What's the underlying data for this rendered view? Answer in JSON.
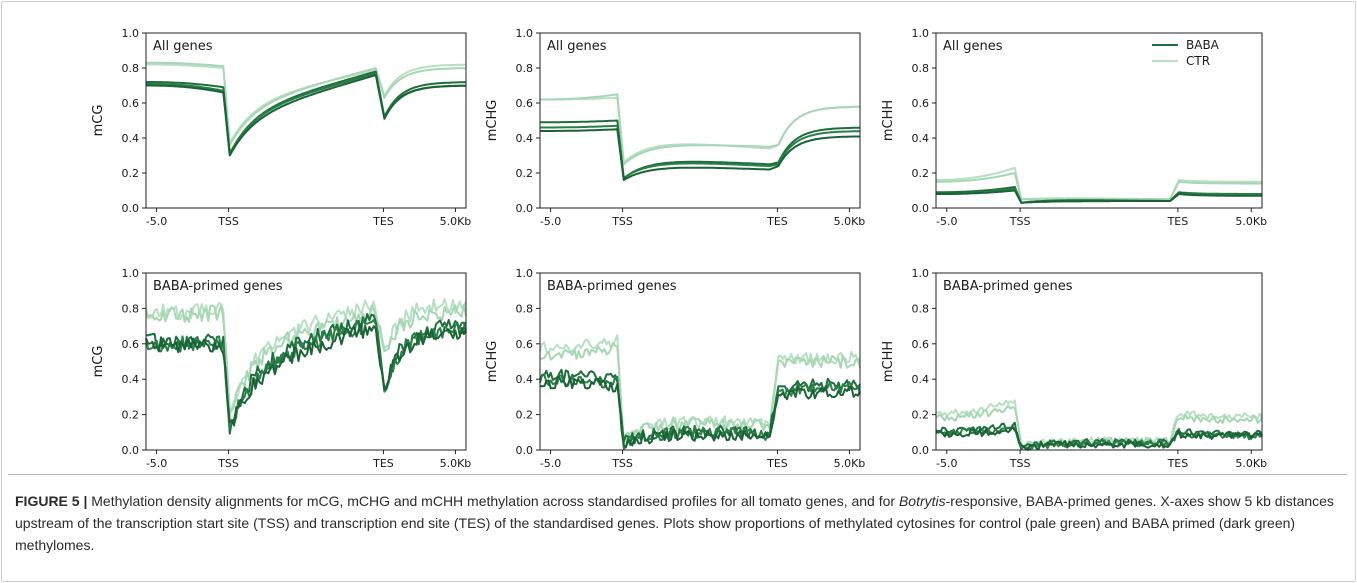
{
  "chart_data": [
    {
      "type": "line",
      "title": "All genes",
      "ylabel": "mCG",
      "ylim": [
        0,
        1.0
      ],
      "yticks": [
        "0.0",
        "0.2",
        "0.4",
        "0.6",
        "0.8",
        "1.0"
      ],
      "xticks": [
        "-5.0",
        "TSS",
        "TES",
        "5.0Kb"
      ],
      "legend": null,
      "noise": 0,
      "x": [
        "-5.0",
        "TSS",
        "TES",
        "5.0Kb"
      ],
      "series": [
        {
          "group": "CTR",
          "start": 0.82,
          "tss": 0.8,
          "dip": 0.37,
          "mid_lo": 0.6,
          "mid_hi": 0.79,
          "tes": 0.73,
          "tes_dip": 0.64,
          "end": 0.82
        },
        {
          "group": "CTR",
          "start": 0.83,
          "tss": 0.81,
          "dip": 0.36,
          "mid_lo": 0.58,
          "mid_hi": 0.8,
          "tes": 0.72,
          "tes_dip": 0.63,
          "end": 0.8
        },
        {
          "group": "BABA",
          "start": 0.72,
          "tss": 0.69,
          "dip": 0.31,
          "mid_lo": 0.55,
          "mid_hi": 0.78,
          "tes": 0.67,
          "tes_dip": 0.52,
          "end": 0.72
        },
        {
          "group": "BABA",
          "start": 0.71,
          "tss": 0.67,
          "dip": 0.31,
          "mid_lo": 0.54,
          "mid_hi": 0.77,
          "tes": 0.66,
          "tes_dip": 0.52,
          "end": 0.7
        },
        {
          "group": "BABA",
          "start": 0.7,
          "tss": 0.66,
          "dip": 0.3,
          "mid_lo": 0.52,
          "mid_hi": 0.76,
          "tes": 0.64,
          "tes_dip": 0.51,
          "end": 0.7
        }
      ]
    },
    {
      "type": "line",
      "title": "All genes",
      "ylabel": "mCHG",
      "ylim": [
        0,
        1.0
      ],
      "yticks": [
        "0.0",
        "0.2",
        "0.4",
        "0.6",
        "0.8",
        "1.0"
      ],
      "xticks": [
        "-5.0",
        "TSS",
        "TES",
        "5.0Kb"
      ],
      "legend": null,
      "noise": 0,
      "x": [
        "-5.0",
        "TSS",
        "TES",
        "5.0Kb"
      ],
      "series": [
        {
          "group": "CTR",
          "start": 0.62,
          "tss": 0.63,
          "dip": 0.26,
          "mid_lo": 0.4,
          "mid_hi": 0.34,
          "tes": 0.33,
          "tes_dip": 0.36,
          "end": 0.58
        },
        {
          "group": "CTR",
          "start": 0.62,
          "tss": 0.65,
          "dip": 0.25,
          "mid_lo": 0.38,
          "mid_hi": 0.35,
          "tes": 0.34,
          "tes_dip": 0.36,
          "end": 0.58
        },
        {
          "group": "BABA",
          "start": 0.49,
          "tss": 0.5,
          "dip": 0.17,
          "mid_lo": 0.29,
          "mid_hi": 0.25,
          "tes": 0.24,
          "tes_dip": 0.26,
          "end": 0.46
        },
        {
          "group": "BABA",
          "start": 0.46,
          "tss": 0.47,
          "dip": 0.17,
          "mid_lo": 0.28,
          "mid_hi": 0.24,
          "tes": 0.23,
          "tes_dip": 0.25,
          "end": 0.44
        },
        {
          "group": "BABA",
          "start": 0.44,
          "tss": 0.45,
          "dip": 0.16,
          "mid_lo": 0.25,
          "mid_hi": 0.22,
          "tes": 0.21,
          "tes_dip": 0.24,
          "end": 0.41
        }
      ]
    },
    {
      "type": "line",
      "title": "All genes",
      "ylabel": "mCHH",
      "ylim": [
        0,
        1.0
      ],
      "yticks": [
        "0.0",
        "0.2",
        "0.4",
        "0.6",
        "0.8",
        "1.0"
      ],
      "xticks": [
        "-5.0",
        "TSS",
        "TES",
        "5.0Kb"
      ],
      "legend": [
        "BABA",
        "CTR"
      ],
      "noise": 0,
      "x": [
        "-5.0",
        "TSS",
        "TES",
        "5.0Kb"
      ],
      "series": [
        {
          "group": "CTR",
          "start": 0.16,
          "tss": 0.23,
          "dip": 0.05,
          "mid_lo": 0.06,
          "mid_hi": 0.05,
          "tes": 0.05,
          "tes_dip": 0.16,
          "end": 0.15
        },
        {
          "group": "CTR",
          "start": 0.15,
          "tss": 0.2,
          "dip": 0.05,
          "mid_lo": 0.05,
          "mid_hi": 0.05,
          "tes": 0.04,
          "tes_dip": 0.15,
          "end": 0.14
        },
        {
          "group": "BABA",
          "start": 0.09,
          "tss": 0.12,
          "dip": 0.03,
          "mid_lo": 0.05,
          "mid_hi": 0.04,
          "tes": 0.04,
          "tes_dip": 0.09,
          "end": 0.08
        },
        {
          "group": "BABA",
          "start": 0.08,
          "tss": 0.11,
          "dip": 0.03,
          "mid_lo": 0.04,
          "mid_hi": 0.04,
          "tes": 0.03,
          "tes_dip": 0.08,
          "end": 0.08
        },
        {
          "group": "BABA",
          "start": 0.08,
          "tss": 0.1,
          "dip": 0.03,
          "mid_lo": 0.04,
          "mid_hi": 0.04,
          "tes": 0.03,
          "tes_dip": 0.08,
          "end": 0.07
        }
      ]
    },
    {
      "type": "line",
      "title": "BABA-primed genes",
      "ylabel": "mCG",
      "ylim": [
        0,
        1.0
      ],
      "yticks": [
        "0.0",
        "0.2",
        "0.4",
        "0.6",
        "0.8",
        "1.0"
      ],
      "xticks": [
        "-5.0",
        "TSS",
        "TES",
        "5.0Kb"
      ],
      "legend": null,
      "noise": 0.045,
      "x": [
        "-5.0",
        "TSS",
        "TES",
        "5.0Kb"
      ],
      "series": [
        {
          "group": "CTR",
          "start": 0.78,
          "tss": 0.8,
          "dip": 0.22,
          "mid_lo": 0.6,
          "mid_hi": 0.82,
          "tes": 0.74,
          "tes_dip": 0.56,
          "end": 0.82
        },
        {
          "group": "CTR",
          "start": 0.76,
          "tss": 0.78,
          "dip": 0.2,
          "mid_lo": 0.58,
          "mid_hi": 0.78,
          "tes": 0.72,
          "tes_dip": 0.55,
          "end": 0.78
        },
        {
          "group": "BABA",
          "start": 0.62,
          "tss": 0.62,
          "dip": 0.13,
          "mid_lo": 0.5,
          "mid_hi": 0.75,
          "tes": 0.62,
          "tes_dip": 0.34,
          "end": 0.7
        },
        {
          "group": "BABA",
          "start": 0.6,
          "tss": 0.6,
          "dip": 0.12,
          "mid_lo": 0.46,
          "mid_hi": 0.73,
          "tes": 0.6,
          "tes_dip": 0.33,
          "end": 0.68
        },
        {
          "group": "BABA",
          "start": 0.6,
          "tss": 0.58,
          "dip": 0.12,
          "mid_lo": 0.44,
          "mid_hi": 0.7,
          "tes": 0.58,
          "tes_dip": 0.35,
          "end": 0.66
        }
      ]
    },
    {
      "type": "line",
      "title": "BABA-primed genes",
      "ylabel": "mCHG",
      "ylim": [
        0,
        1.0
      ],
      "yticks": [
        "0.0",
        "0.2",
        "0.4",
        "0.6",
        "0.8",
        "1.0"
      ],
      "xticks": [
        "-5.0",
        "TSS",
        "TES",
        "5.0Kb"
      ],
      "legend": null,
      "noise": 0.035,
      "x": [
        "-5.0",
        "TSS",
        "TES",
        "5.0Kb"
      ],
      "series": [
        {
          "group": "CTR",
          "start": 0.58,
          "tss": 0.62,
          "dip": 0.05,
          "mid_lo": 0.18,
          "mid_hi": 0.15,
          "tes": 0.12,
          "tes_dip": 0.5,
          "end": 0.52
        },
        {
          "group": "CTR",
          "start": 0.54,
          "tss": 0.58,
          "dip": 0.05,
          "mid_lo": 0.17,
          "mid_hi": 0.14,
          "tes": 0.11,
          "tes_dip": 0.48,
          "end": 0.5
        },
        {
          "group": "BABA",
          "start": 0.42,
          "tss": 0.4,
          "dip": 0.04,
          "mid_lo": 0.12,
          "mid_hi": 0.1,
          "tes": 0.09,
          "tes_dip": 0.34,
          "end": 0.37
        },
        {
          "group": "BABA",
          "start": 0.4,
          "tss": 0.38,
          "dip": 0.04,
          "mid_lo": 0.11,
          "mid_hi": 0.09,
          "tes": 0.08,
          "tes_dip": 0.32,
          "end": 0.35
        },
        {
          "group": "BABA",
          "start": 0.38,
          "tss": 0.36,
          "dip": 0.03,
          "mid_lo": 0.1,
          "mid_hi": 0.08,
          "tes": 0.07,
          "tes_dip": 0.3,
          "end": 0.33
        }
      ]
    },
    {
      "type": "line",
      "title": "BABA-primed genes",
      "ylabel": "mCHH",
      "ylim": [
        0,
        1.0
      ],
      "yticks": [
        "0.0",
        "0.2",
        "0.4",
        "0.6",
        "0.8",
        "1.0"
      ],
      "xticks": [
        "-5.0",
        "TSS",
        "TES",
        "5.0Kb"
      ],
      "legend": null,
      "noise": 0.02,
      "x": [
        "-5.0",
        "TSS",
        "TES",
        "5.0Kb"
      ],
      "series": [
        {
          "group": "CTR",
          "start": 0.21,
          "tss": 0.28,
          "dip": 0.02,
          "mid_lo": 0.06,
          "mid_hi": 0.05,
          "tes": 0.04,
          "tes_dip": 0.21,
          "end": 0.19
        },
        {
          "group": "CTR",
          "start": 0.18,
          "tss": 0.25,
          "dip": 0.02,
          "mid_lo": 0.05,
          "mid_hi": 0.05,
          "tes": 0.04,
          "tes_dip": 0.19,
          "end": 0.17
        },
        {
          "group": "BABA",
          "start": 0.11,
          "tss": 0.14,
          "dip": 0.02,
          "mid_lo": 0.05,
          "mid_hi": 0.04,
          "tes": 0.03,
          "tes_dip": 0.11,
          "end": 0.09
        },
        {
          "group": "BABA",
          "start": 0.1,
          "tss": 0.12,
          "dip": 0.01,
          "mid_lo": 0.04,
          "mid_hi": 0.04,
          "tes": 0.03,
          "tes_dip": 0.1,
          "end": 0.08
        },
        {
          "group": "BABA",
          "start": 0.09,
          "tss": 0.12,
          "dip": 0.01,
          "mid_lo": 0.04,
          "mid_hi": 0.03,
          "tes": 0.02,
          "tes_dip": 0.09,
          "end": 0.08
        }
      ]
    }
  ],
  "colors": {
    "BABA": [
      "#1f6e3d",
      "#2a7f49",
      "#1b6336"
    ],
    "CTR": [
      "#b8dfc4",
      "#a6d6b4"
    ],
    "axis": "#222222"
  },
  "caption": {
    "figure_label": "FIGURE 5 |",
    "text_part1": " Methylation density alignments for mCG, mCHG and mCHH methylation across standardised profiles for all tomato genes, and for ",
    "italic_word": "Botrytis",
    "text_part2": "-responsive, BABA-primed genes. X-axes show 5 kb distances upstream of the transcription start site (TSS) and transcription end site (TES) of the standardised genes. Plots show proportions of methylated cytosines for control (pale green) and BABA primed (dark green) methylomes."
  }
}
